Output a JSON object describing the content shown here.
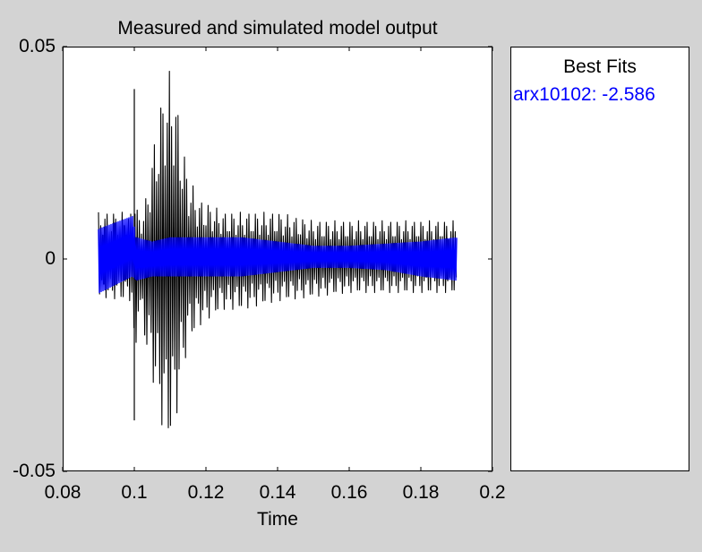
{
  "chart_data": {
    "type": "line",
    "title": "Measured and simulated model output",
    "xlabel": "Time",
    "ylabel": "",
    "xlim": [
      0.08,
      0.2
    ],
    "ylim": [
      -0.05,
      0.05
    ],
    "x_ticks": [
      "0.08",
      "0.1",
      "0.12",
      "0.14",
      "0.16",
      "0.18",
      "0.2"
    ],
    "y_ticks": [
      "0.05",
      "0",
      "-0.05"
    ],
    "grid": false,
    "series": [
      {
        "name": "",
        "color": "#000000",
        "envelope_x": [
          0.09,
          0.0995,
          0.1,
          0.101,
          0.103,
          0.105,
          0.107,
          0.109,
          0.111,
          0.113,
          0.115,
          0.118,
          0.121,
          0.125,
          0.13,
          0.14,
          0.15,
          0.16,
          0.17,
          0.18,
          0.19
        ],
        "envelope_max": [
          0.011,
          0.011,
          0.02,
          0.01,
          0.013,
          0.025,
          0.035,
          0.045,
          0.043,
          0.03,
          0.02,
          0.014,
          0.013,
          0.011,
          0.011,
          0.011,
          0.009,
          0.009,
          0.009,
          0.009,
          0.009
        ],
        "envelope_min": [
          -0.009,
          -0.01,
          -0.038,
          -0.012,
          -0.02,
          -0.028,
          -0.037,
          -0.044,
          -0.042,
          -0.03,
          -0.02,
          -0.016,
          -0.014,
          -0.012,
          -0.012,
          -0.01,
          -0.009,
          -0.008,
          -0.008,
          -0.008,
          -0.008
        ],
        "spikes": [
          [
            0.1,
            0.04,
            -0.038
          ]
        ]
      },
      {
        "name": "arx10102: -2.586",
        "color": "#0000ff",
        "envelope_x": [
          0.09,
          0.0995,
          0.1005,
          0.105,
          0.11,
          0.12,
          0.13,
          0.14,
          0.15,
          0.16,
          0.17,
          0.18,
          0.19
        ],
        "envelope_max": [
          0.007,
          0.01,
          0.005,
          0.004,
          0.005,
          0.005,
          0.005,
          0.004,
          0.003,
          0.003,
          0.0035,
          0.004,
          0.005
        ],
        "envelope_min": [
          -0.008,
          -0.004,
          -0.005,
          -0.004,
          -0.004,
          -0.004,
          -0.004,
          -0.003,
          -0.002,
          -0.002,
          -0.0025,
          -0.004,
          -0.005
        ]
      }
    ],
    "legend": {
      "title": "Best Fits",
      "entries": [
        "arx10102: -2.586"
      ],
      "placement": "right-panel"
    }
  }
}
